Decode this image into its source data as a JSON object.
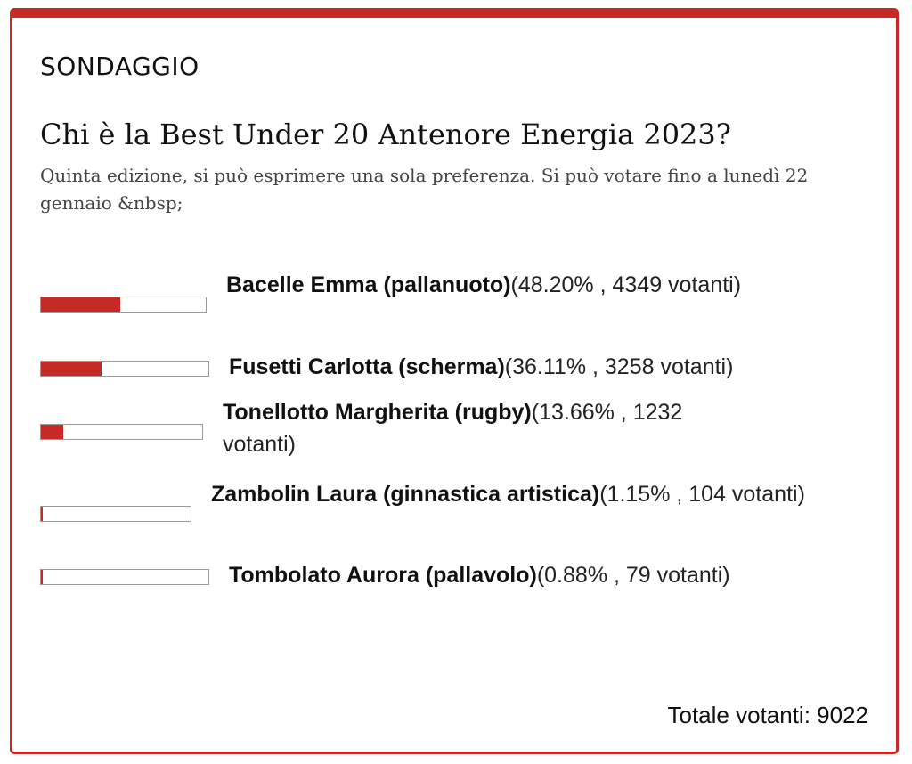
{
  "poll": {
    "section_label": "SONDAGGIO",
    "question": "Chi è la Best Under 20 Antenore Energia 2023?",
    "description": "Quinta edizione, si può esprimere una sola preferenza. Si può votare fino a lunedì 22 gennaio &nbsp;",
    "options": [
      {
        "name": "Bacelle Emma (pallanuoto)",
        "stats": "(48.20% , 4349 votanti)",
        "percent": 48.2
      },
      {
        "name": "Fusetti Carlotta (scherma)",
        "stats": "(36.11% , 3258 votanti)",
        "percent": 36.11
      },
      {
        "name": "Tonellotto Margherita (rugby)",
        "stats": "(13.66% , 1232 votanti)",
        "percent": 13.66
      },
      {
        "name": "Zambolin Laura (ginnastica artistica)",
        "stats": "(1.15% , 104 votanti)",
        "percent": 1.15
      },
      {
        "name": "Tombolato Aurora (pallavolo)",
        "stats": "(0.88% , 79 votanti)",
        "percent": 0.88
      }
    ],
    "total": "Totale votanti: 9022",
    "accent_color": "#c62a24"
  }
}
